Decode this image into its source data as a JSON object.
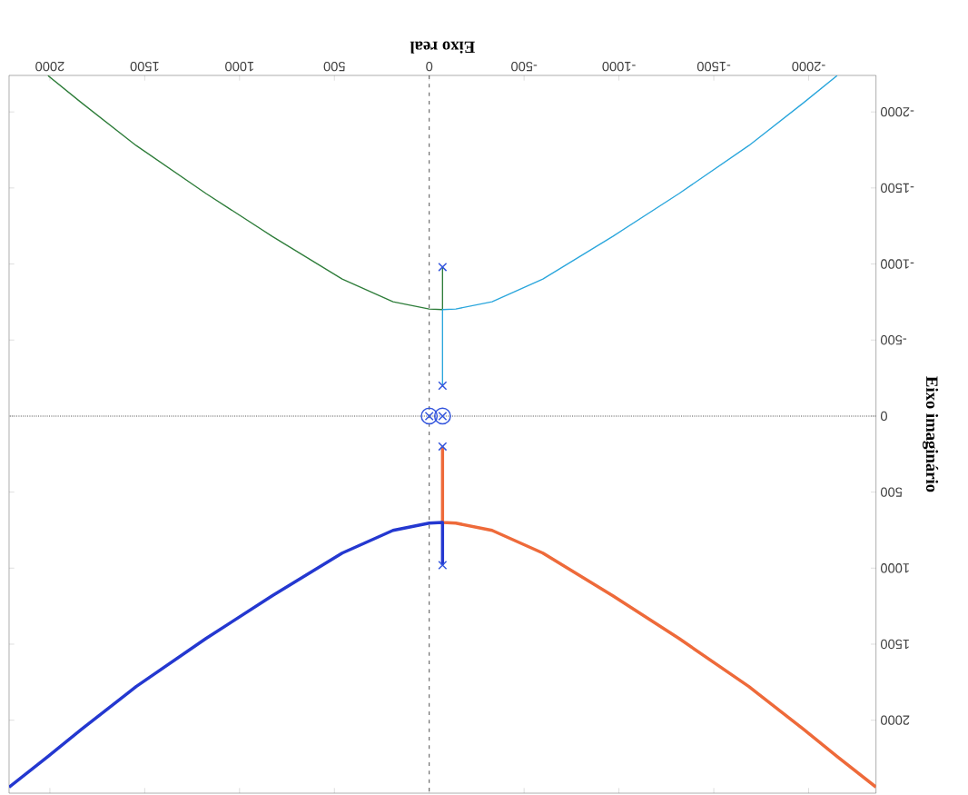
{
  "chart_data": {
    "type": "line",
    "xlabel": "Eixo real",
    "ylabel": "Eixo imaginário",
    "xlim": [
      2215,
      -2355
    ],
    "ylim": [
      2480,
      -2240
    ],
    "xticks": [
      2000,
      1500,
      1000,
      500,
      0,
      -500,
      -1000,
      -1500,
      -2000
    ],
    "yticks": [
      -2000,
      -1500,
      -1000,
      -500,
      0,
      500,
      1000,
      1500,
      2000
    ],
    "line_style": "solid",
    "series": [
      {
        "color": "#2e7d3a",
        "x": [
          -70,
          -70,
          0,
          191,
          459,
          828,
          1177,
          1545,
          1833,
          2010
        ],
        "values": [
          -980,
          -700,
          -704,
          -752,
          -901,
          -1182,
          -1463,
          -1779,
          -2060,
          -2239
        ]
      },
      {
        "color": "#2aa6dc",
        "x": [
          -70,
          -70,
          -140,
          -331,
          -599,
          -968,
          -1317,
          -1685,
          -1973,
          -2150
        ],
        "values": [
          -200,
          -700,
          -704,
          -752,
          -901,
          -1182,
          -1463,
          -1779,
          -2060,
          -2239
        ]
      },
      {
        "color": "#ee6a3a",
        "x": [
          -70,
          -70,
          -140,
          -331,
          -599,
          -968,
          -1317,
          -1685,
          -1973,
          -2150,
          -2355
        ],
        "values": [
          200,
          700,
          704,
          752,
          901,
          1182,
          1463,
          1779,
          2060,
          2239,
          2440
        ]
      },
      {
        "color": "#2438d0",
        "x": [
          -70,
          -70,
          0,
          191,
          459,
          828,
          1177,
          1545,
          1833,
          2010,
          2215
        ],
        "values": [
          980,
          700,
          704,
          752,
          901,
          1182,
          1463,
          1779,
          2060,
          2239,
          2440
        ]
      },
      {
        "type": "scatter",
        "marker": "cross",
        "color": "#3355dd",
        "x": [
          -70,
          -70,
          -70,
          -70,
          0,
          -70
        ],
        "values": [
          -980,
          -200,
          200,
          980,
          0,
          0
        ]
      },
      {
        "type": "scatter",
        "marker": "circle",
        "color": "#3355dd",
        "x": [
          0,
          -70
        ],
        "values": [
          0,
          0
        ]
      }
    ],
    "ref_lines": [
      {
        "axis": "x",
        "value": 0,
        "line_style": "dashed",
        "color": "#555555"
      },
      {
        "axis": "y",
        "value": 0,
        "line_style": "dotted",
        "color": "#555555"
      }
    ]
  }
}
